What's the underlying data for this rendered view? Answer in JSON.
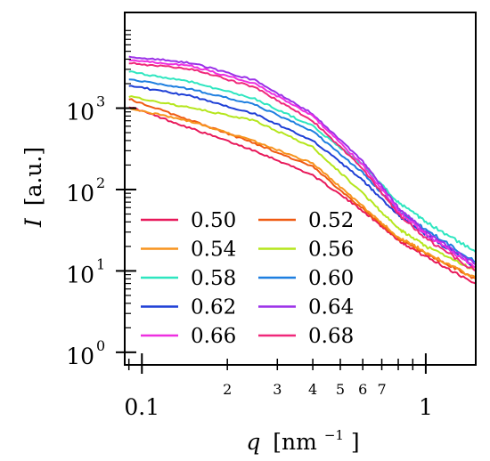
{
  "chart_data": {
    "type": "line",
    "xlabel_var": "q",
    "xlabel_unit": "[nm",
    "xlabel_exp": "−1",
    "xlabel_close": "]",
    "ylabel_var": "I",
    "ylabel_unit": "[a.u.]",
    "xscale": "log",
    "yscale": "log",
    "xlim": [
      0.087,
      1.5
    ],
    "ylim": [
      0.7,
      15000
    ],
    "x_major_ticks": [
      {
        "v": 0.1,
        "label": "0.1"
      },
      {
        "v": 1,
        "label": "1"
      }
    ],
    "x_minor_ticks": [
      {
        "v": 0.09,
        "label": ""
      },
      {
        "v": 0.2,
        "label": "2"
      },
      {
        "v": 0.3,
        "label": "3"
      },
      {
        "v": 0.4,
        "label": "4"
      },
      {
        "v": 0.5,
        "label": "5"
      },
      {
        "v": 0.6,
        "label": "6"
      },
      {
        "v": 0.7,
        "label": "7"
      },
      {
        "v": 0.8,
        "label": ""
      },
      {
        "v": 0.9,
        "label": ""
      }
    ],
    "y_major_ticks": [
      {
        "v": 1,
        "base": "10",
        "exp": "0"
      },
      {
        "v": 10,
        "base": "10",
        "exp": "1"
      },
      {
        "v": 100,
        "base": "10",
        "exp": "2"
      },
      {
        "v": 1000,
        "base": "10",
        "exp": "3"
      }
    ],
    "legend_position": "lower-left",
    "series": [
      {
        "name": "0.50",
        "color": "#e8195a",
        "x": [
          0.09,
          0.15,
          0.25,
          0.4,
          0.6,
          0.8,
          1.0,
          1.5
        ],
        "y": [
          1050,
          560,
          300,
          150,
          55,
          24,
          15,
          7
        ]
      },
      {
        "name": "0.52",
        "color": "#ef5a12",
        "x": [
          0.09,
          0.15,
          0.25,
          0.4,
          0.6,
          0.8,
          1.0,
          1.5
        ],
        "y": [
          1300,
          700,
          370,
          190,
          58,
          25,
          16,
          8
        ]
      },
      {
        "name": "0.54",
        "color": "#f7941e",
        "x": [
          0.09,
          0.15,
          0.25,
          0.4,
          0.6,
          0.8,
          1.0,
          1.5
        ],
        "y": [
          1000,
          680,
          390,
          210,
          62,
          26,
          17,
          8
        ]
      },
      {
        "name": "0.56",
        "color": "#b5e61d",
        "x": [
          0.09,
          0.15,
          0.25,
          0.4,
          0.6,
          0.8,
          1.0,
          1.5
        ],
        "y": [
          1400,
          1000,
          700,
          330,
          90,
          33,
          20,
          10
        ]
      },
      {
        "name": "0.58",
        "color": "#2ee6c0",
        "x": [
          0.09,
          0.15,
          0.25,
          0.4,
          0.6,
          0.8,
          1.0,
          1.5
        ],
        "y": [
          2800,
          2100,
          1300,
          600,
          200,
          70,
          40,
          17
        ]
      },
      {
        "name": "0.60",
        "color": "#1e7fe0",
        "x": [
          0.09,
          0.15,
          0.25,
          0.4,
          0.6,
          0.8,
          1.0,
          1.5
        ],
        "y": [
          2300,
          1700,
          1100,
          520,
          160,
          55,
          32,
          13
        ]
      },
      {
        "name": "0.62",
        "color": "#1e3fd6",
        "x": [
          0.09,
          0.15,
          0.25,
          0.4,
          0.6,
          0.8,
          1.0,
          1.5
        ],
        "y": [
          1900,
          1400,
          850,
          400,
          130,
          48,
          28,
          11
        ]
      },
      {
        "name": "0.64",
        "color": "#9b30e8",
        "x": [
          0.09,
          0.15,
          0.25,
          0.4,
          0.6,
          0.8,
          1.0,
          1.5
        ],
        "y": [
          4300,
          3600,
          2200,
          850,
          220,
          60,
          30,
          12
        ]
      },
      {
        "name": "0.66",
        "color": "#ee2fe0",
        "x": [
          0.09,
          0.15,
          0.25,
          0.4,
          0.6,
          0.8,
          1.0,
          1.5
        ],
        "y": [
          3900,
          3300,
          2000,
          800,
          200,
          55,
          28,
          11
        ]
      },
      {
        "name": "0.68",
        "color": "#f0287a",
        "x": [
          0.09,
          0.15,
          0.25,
          0.4,
          0.6,
          0.8,
          1.0,
          1.5
        ],
        "y": [
          3600,
          3000,
          1800,
          700,
          180,
          50,
          25,
          10
        ]
      }
    ]
  }
}
